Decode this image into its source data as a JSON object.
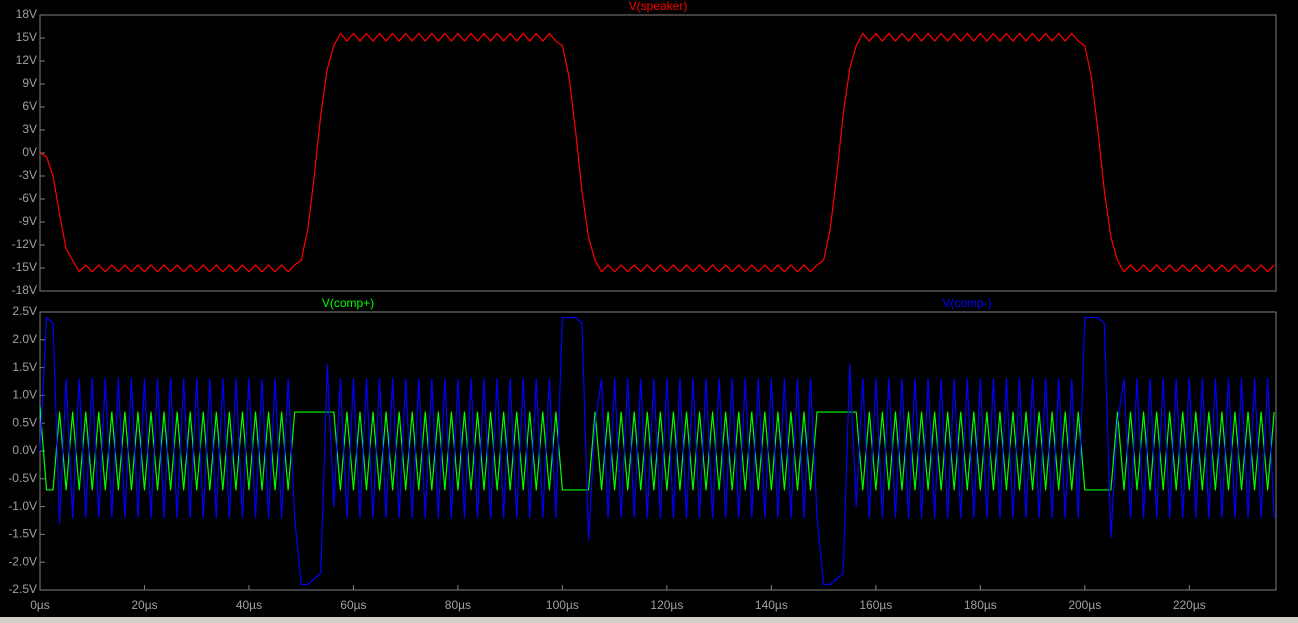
{
  "chart_data": [
    {
      "type": "line",
      "x": [
        0,
        1.25,
        2.5,
        3.75,
        5,
        6.25,
        7.5,
        8.75,
        10,
        11.25,
        12.5,
        13.75,
        15,
        16.25,
        17.5,
        18.75,
        20,
        21.25,
        22.5,
        23.75,
        25,
        26.25,
        27.5,
        28.75,
        30,
        31.25,
        32.5,
        33.75,
        35,
        36.25,
        37.5,
        38.75,
        40,
        41.25,
        42.5,
        43.75,
        45,
        46.25,
        47.5,
        48.75,
        50,
        51.25,
        52.5,
        53.75,
        55,
        56.25,
        57.5,
        58.75,
        60,
        61.25,
        62.5,
        63.75,
        65,
        66.25,
        67.5,
        68.75,
        70,
        71.25,
        72.5,
        73.75,
        75,
        76.25,
        77.5,
        78.75,
        80,
        81.25,
        82.5,
        83.75,
        85,
        86.25,
        87.5,
        88.75,
        90,
        91.25,
        92.5,
        93.75,
        95,
        96.25,
        97.5,
        98.75,
        100,
        101.25,
        102.5,
        103.75,
        105,
        106.25,
        107.5,
        108.75,
        110,
        111.25,
        112.5,
        113.75,
        115,
        116.25,
        117.5,
        118.75,
        120,
        121.25,
        122.5,
        123.75,
        125,
        126.25,
        127.5,
        128.75,
        130,
        131.25,
        132.5,
        133.75,
        135,
        136.25,
        137.5,
        138.75,
        140,
        141.25,
        142.5,
        143.75,
        145,
        146.25,
        147.5,
        148.75,
        150,
        151.25,
        152.5,
        153.75,
        155,
        156.25,
        157.5,
        158.75,
        160,
        161.25,
        162.5,
        163.75,
        165,
        166.25,
        167.5,
        168.75,
        170,
        171.25,
        172.5,
        173.75,
        175,
        176.25,
        177.5,
        178.75,
        180,
        181.25,
        182.5,
        183.75,
        185,
        186.25,
        187.5,
        188.75,
        190,
        191.25,
        192.5,
        193.75,
        195,
        196.25,
        197.5,
        198.75,
        200,
        201.25,
        202.5,
        203.75,
        205,
        206.25,
        207.5,
        208.75,
        210,
        211.25,
        212.5,
        213.75,
        215,
        216.25,
        217.5,
        218.75,
        220,
        221.25,
        222.5,
        223.75,
        225,
        226.25,
        227.5,
        228.75,
        230,
        231.25,
        232.5,
        233.75,
        235,
        236.25
      ],
      "series": [
        {
          "name": "V(speaker)",
          "color": "#ff0000",
          "values": [
            0,
            -0.5,
            -3,
            -8,
            -12.5,
            -14,
            -15.5,
            -14.6,
            -15.5,
            -14.6,
            -15.5,
            -14.6,
            -15.5,
            -14.6,
            -15.5,
            -14.6,
            -15.5,
            -14.6,
            -15.5,
            -14.6,
            -15.5,
            -14.6,
            -15.5,
            -14.6,
            -15.5,
            -14.6,
            -15.5,
            -14.6,
            -15.5,
            -14.6,
            -15.5,
            -14.6,
            -15.5,
            -14.6,
            -15.5,
            -14.6,
            -15.5,
            -14.6,
            -15.5,
            -14.6,
            -14,
            -10,
            -3,
            5,
            11,
            14,
            15.6,
            14.6,
            15.6,
            14.6,
            15.6,
            14.6,
            15.6,
            14.6,
            15.6,
            14.6,
            15.6,
            14.6,
            15.6,
            14.6,
            15.6,
            14.6,
            15.6,
            14.6,
            15.6,
            14.6,
            15.6,
            14.6,
            15.6,
            14.6,
            15.6,
            14.6,
            15.6,
            14.6,
            15.6,
            14.6,
            15.6,
            14.6,
            15.6,
            14.6,
            14,
            10,
            3,
            -5,
            -11,
            -14,
            -15.5,
            -14.6,
            -15.5,
            -14.6,
            -15.5,
            -14.6,
            -15.5,
            -14.6,
            -15.5,
            -14.6,
            -15.5,
            -14.6,
            -15.5,
            -14.6,
            -15.5,
            -14.6,
            -15.5,
            -14.6,
            -15.5,
            -14.6,
            -15.5,
            -14.6,
            -15.5,
            -14.6,
            -15.5,
            -14.6,
            -15.5,
            -14.6,
            -15.5,
            -14.6,
            -15.5,
            -14.6,
            -15.5,
            -14.6,
            -14,
            -10,
            -3,
            5,
            11,
            14,
            15.6,
            14.6,
            15.6,
            14.6,
            15.6,
            14.6,
            15.6,
            14.6,
            15.6,
            14.6,
            15.6,
            14.6,
            15.6,
            14.6,
            15.6,
            14.6,
            15.6,
            14.6,
            15.6,
            14.6,
            15.6,
            14.6,
            15.6,
            14.6,
            15.6,
            14.6,
            15.6,
            14.6,
            15.6,
            14.6,
            15.6,
            14.6,
            15.6,
            14.6,
            14,
            10,
            3,
            -5,
            -11,
            -14,
            -15.5,
            -14.6,
            -15.5,
            -14.6,
            -15.5,
            -14.6,
            -15.5,
            -14.6,
            -15.5,
            -14.6,
            -15.5,
            -14.6,
            -15.5,
            -14.6,
            -15.5,
            -14.6,
            -15.5,
            -14.6,
            -15.5,
            -14.6,
            -15.5,
            -14.6,
            -15.5,
            -14.6
          ]
        }
      ],
      "xlim": [
        0,
        236.6
      ],
      "ylim": [
        -18,
        18
      ],
      "yticks": [
        {
          "value": 18,
          "label": "18V"
        },
        {
          "value": 15,
          "label": "15V"
        },
        {
          "value": 12,
          "label": "12V"
        },
        {
          "value": 9,
          "label": "9V"
        },
        {
          "value": 6,
          "label": "6V"
        },
        {
          "value": 3,
          "label": "3V"
        },
        {
          "value": 0,
          "label": "0V"
        },
        {
          "value": -3,
          "label": "-3V"
        },
        {
          "value": -6,
          "label": "-6V"
        },
        {
          "value": -9,
          "label": "-9V"
        },
        {
          "value": -12,
          "label": "-12V"
        },
        {
          "value": -15,
          "label": "-15V"
        },
        {
          "value": -18,
          "label": "-18V"
        }
      ]
    },
    {
      "type": "line",
      "x": [
        0,
        1.25,
        2.5,
        3.75,
        5,
        6.25,
        7.5,
        8.75,
        10,
        11.25,
        12.5,
        13.75,
        15,
        16.25,
        17.5,
        18.75,
        20,
        21.25,
        22.5,
        23.75,
        25,
        26.25,
        27.5,
        28.75,
        30,
        31.25,
        32.5,
        33.75,
        35,
        36.25,
        37.5,
        38.75,
        40,
        41.25,
        42.5,
        43.75,
        45,
        46.25,
        47.5,
        48.75,
        50,
        51.25,
        52.5,
        53.75,
        55,
        56.25,
        57.5,
        58.75,
        60,
        61.25,
        62.5,
        63.75,
        65,
        66.25,
        67.5,
        68.75,
        70,
        71.25,
        72.5,
        73.75,
        75,
        76.25,
        77.5,
        78.75,
        80,
        81.25,
        82.5,
        83.75,
        85,
        86.25,
        87.5,
        88.75,
        90,
        91.25,
        92.5,
        93.75,
        95,
        96.25,
        97.5,
        98.75,
        100,
        101.25,
        102.5,
        103.75,
        105,
        106.25,
        107.5,
        108.75,
        110,
        111.25,
        112.5,
        113.75,
        115,
        116.25,
        117.5,
        118.75,
        120,
        121.25,
        122.5,
        123.75,
        125,
        126.25,
        127.5,
        128.75,
        130,
        131.25,
        132.5,
        133.75,
        135,
        136.25,
        137.5,
        138.75,
        140,
        141.25,
        142.5,
        143.75,
        145,
        146.25,
        147.5,
        148.75,
        150,
        151.25,
        152.5,
        153.75,
        155,
        156.25,
        157.5,
        158.75,
        160,
        161.25,
        162.5,
        163.75,
        165,
        166.25,
        167.5,
        168.75,
        170,
        171.25,
        172.5,
        173.75,
        175,
        176.25,
        177.5,
        178.75,
        180,
        181.25,
        182.5,
        183.75,
        185,
        186.25,
        187.5,
        188.75,
        190,
        191.25,
        192.5,
        193.75,
        195,
        196.25,
        197.5,
        198.75,
        200,
        201.25,
        202.5,
        203.75,
        205,
        206.25,
        207.5,
        208.75,
        210,
        211.25,
        212.5,
        213.75,
        215,
        216.25,
        217.5,
        218.75,
        220,
        221.25,
        222.5,
        223.75,
        225,
        226.25,
        227.5,
        228.75,
        230,
        231.25,
        232.5,
        233.75,
        235,
        236.25
      ],
      "series": [
        {
          "name": "V(comp+)",
          "color": "#00ff00",
          "values": [
            0.8,
            -0.7,
            -0.7,
            0.7,
            -0.7,
            0.7,
            -0.7,
            0.7,
            -0.7,
            0.7,
            -0.7,
            0.7,
            -0.7,
            0.7,
            -0.7,
            0.7,
            -0.7,
            0.7,
            -0.7,
            0.7,
            -0.7,
            0.7,
            -0.7,
            0.7,
            -0.7,
            0.7,
            -0.7,
            0.7,
            -0.7,
            0.7,
            -0.7,
            0.7,
            -0.7,
            0.7,
            -0.7,
            0.7,
            -0.7,
            0.7,
            -0.7,
            0.7,
            0.7,
            0.7,
            0.7,
            0.7,
            0.7,
            0.7,
            -0.7,
            0.7,
            -0.7,
            0.7,
            -0.7,
            0.7,
            -0.7,
            0.7,
            -0.7,
            0.7,
            -0.7,
            0.7,
            -0.7,
            0.7,
            -0.7,
            0.7,
            -0.7,
            0.7,
            -0.7,
            0.7,
            -0.7,
            0.7,
            -0.7,
            0.7,
            -0.7,
            0.7,
            -0.7,
            0.7,
            -0.7,
            0.7,
            -0.7,
            0.7,
            -0.7,
            0.7,
            -0.7,
            -0.7,
            -0.7,
            -0.7,
            -0.7,
            0.7,
            -0.7,
            0.7,
            -0.7,
            0.7,
            -0.7,
            0.7,
            -0.7,
            0.7,
            -0.7,
            0.7,
            -0.7,
            0.7,
            -0.7,
            0.7,
            -0.7,
            0.7,
            -0.7,
            0.7,
            -0.7,
            0.7,
            -0.7,
            0.7,
            -0.7,
            0.7,
            -0.7,
            0.7,
            -0.7,
            0.7,
            -0.7,
            0.7,
            -0.7,
            0.7,
            -0.7,
            0.7,
            0.7,
            0.7,
            0.7,
            0.7,
            0.7,
            0.7,
            -0.7,
            0.7,
            -0.7,
            0.7,
            -0.7,
            0.7,
            -0.7,
            0.7,
            -0.7,
            0.7,
            -0.7,
            0.7,
            -0.7,
            0.7,
            -0.7,
            0.7,
            -0.7,
            0.7,
            -0.7,
            0.7,
            -0.7,
            0.7,
            -0.7,
            0.7,
            -0.7,
            0.7,
            -0.7,
            0.7,
            -0.7,
            0.7,
            -0.7,
            0.7,
            -0.7,
            0.7,
            -0.7,
            -0.7,
            -0.7,
            -0.7,
            -0.7,
            0.7,
            -0.7,
            0.7,
            -0.7,
            0.7,
            -0.7,
            0.7,
            -0.7,
            0.7,
            -0.7,
            0.7,
            -0.7,
            0.7,
            -0.7,
            0.7,
            -0.7,
            0.7,
            -0.7,
            0.7,
            -0.7,
            0.7,
            -0.7,
            0.7,
            -0.7,
            0.7
          ]
        },
        {
          "name": "V(comp-)",
          "color": "#0000ff",
          "values": [
            0,
            2.4,
            2.3,
            -1.3,
            1.3,
            -1.2,
            1.3,
            -1.2,
            1.3,
            -1.2,
            1.3,
            -1.2,
            1.3,
            -1.2,
            1.3,
            -1.2,
            1.3,
            -1.2,
            1.3,
            -1.2,
            1.3,
            -1.2,
            1.3,
            -1.2,
            1.3,
            -1.2,
            1.3,
            -1.2,
            1.3,
            -1.2,
            1.3,
            -1.2,
            1.3,
            -1.2,
            1.3,
            -1.2,
            1.3,
            -1.2,
            1.3,
            -1.2,
            -2.4,
            -2.4,
            -2.3,
            -2.2,
            1.55,
            -1.0,
            1.3,
            -1.2,
            1.3,
            -1.2,
            1.3,
            -1.2,
            1.3,
            -1.2,
            1.3,
            -1.2,
            1.3,
            -1.2,
            1.3,
            -1.2,
            1.3,
            -1.2,
            1.3,
            -1.2,
            1.3,
            -1.2,
            1.3,
            -1.2,
            1.3,
            -1.2,
            1.3,
            -1.2,
            1.3,
            -1.2,
            1.3,
            -1.2,
            1.3,
            -1.2,
            1.3,
            -1.2,
            2.4,
            2.4,
            2.4,
            2.3,
            -1.6,
            0.5,
            1.3,
            -1.2,
            1.3,
            -1.2,
            1.3,
            -1.2,
            1.3,
            -1.2,
            1.3,
            -1.2,
            1.3,
            -1.2,
            1.3,
            -1.2,
            1.3,
            -1.2,
            1.3,
            -1.2,
            1.3,
            -1.2,
            1.3,
            -1.2,
            1.3,
            -1.2,
            1.3,
            -1.2,
            1.3,
            -1.2,
            1.3,
            -1.2,
            1.3,
            -1.2,
            1.3,
            -1.2,
            -2.4,
            -2.4,
            -2.3,
            -2.2,
            1.55,
            -1.0,
            1.3,
            -1.2,
            1.3,
            -1.2,
            1.3,
            -1.2,
            1.3,
            -1.2,
            1.3,
            -1.2,
            1.3,
            -1.2,
            1.3,
            -1.2,
            1.3,
            -1.2,
            1.3,
            -1.2,
            1.3,
            -1.2,
            1.3,
            -1.2,
            1.3,
            -1.2,
            1.3,
            -1.2,
            1.3,
            -1.2,
            1.3,
            -1.2,
            1.3,
            -1.2,
            1.3,
            -1.2,
            2.4,
            2.4,
            2.4,
            2.3,
            -1.55,
            0.5,
            1.3,
            -1.2,
            1.3,
            -1.2,
            1.3,
            -1.2,
            1.3,
            -1.2,
            1.3,
            -1.2,
            1.3,
            -1.2,
            1.3,
            -1.2,
            1.3,
            -1.2,
            1.3,
            -1.2,
            1.3,
            -1.2,
            1.3,
            -1.2,
            1.3,
            -1.2
          ]
        }
      ],
      "xlim": [
        0,
        236.6
      ],
      "xticks": [
        {
          "value": 0,
          "label": "0µs"
        },
        {
          "value": 20,
          "label": "20µs"
        },
        {
          "value": 40,
          "label": "40µs"
        },
        {
          "value": 60,
          "label": "60µs"
        },
        {
          "value": 80,
          "label": "80µs"
        },
        {
          "value": 100,
          "label": "100µs"
        },
        {
          "value": 120,
          "label": "120µs"
        },
        {
          "value": 140,
          "label": "140µs"
        },
        {
          "value": 160,
          "label": "160µs"
        },
        {
          "value": 180,
          "label": "180µs"
        },
        {
          "value": 200,
          "label": "200µs"
        },
        {
          "value": 220,
          "label": "220µs"
        }
      ],
      "ylim": [
        -2.5,
        2.5
      ],
      "yticks": [
        {
          "value": 2.5,
          "label": "2.5V"
        },
        {
          "value": 2.0,
          "label": "2.0V"
        },
        {
          "value": 1.5,
          "label": "1.5V"
        },
        {
          "value": 1.0,
          "label": "1.0V"
        },
        {
          "value": 0.5,
          "label": "0.5V"
        },
        {
          "value": 0,
          "label": "0.0V"
        },
        {
          "value": -0.5,
          "label": "-0.5V"
        },
        {
          "value": -1.0,
          "label": "-1.0V"
        },
        {
          "value": -1.5,
          "label": "-1.5V"
        },
        {
          "value": -2.0,
          "label": "-2.0V"
        },
        {
          "value": -2.5,
          "label": "-2.5V"
        }
      ]
    }
  ]
}
